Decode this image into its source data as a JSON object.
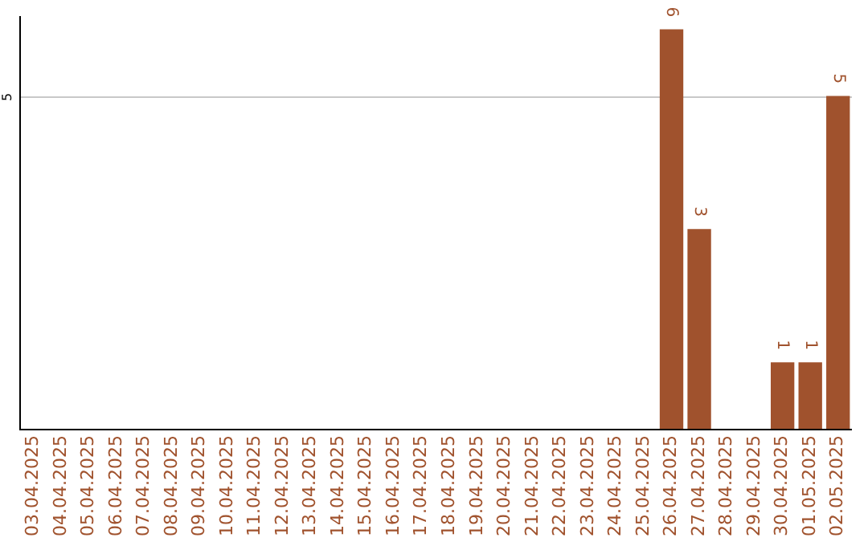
{
  "chart_data": {
    "type": "bar",
    "categories": [
      "03.04.2025",
      "04.04.2025",
      "05.04.2025",
      "06.04.2025",
      "07.04.2025",
      "08.04.2025",
      "09.04.2025",
      "10.04.2025",
      "11.04.2025",
      "12.04.2025",
      "13.04.2025",
      "14.04.2025",
      "15.04.2025",
      "16.04.2025",
      "17.04.2025",
      "18.04.2025",
      "19.04.2025",
      "20.04.2025",
      "21.04.2025",
      "22.04.2025",
      "23.04.2025",
      "24.04.2025",
      "25.04.2025",
      "26.04.2025",
      "27.04.2025",
      "28.04.2025",
      "29.04.2025",
      "30.04.2025",
      "01.05.2025",
      "02.05.2025"
    ],
    "values": [
      null,
      null,
      null,
      null,
      null,
      null,
      null,
      null,
      null,
      null,
      null,
      null,
      null,
      null,
      null,
      null,
      null,
      null,
      null,
      null,
      null,
      null,
      null,
      6,
      3,
      null,
      null,
      1,
      1,
      5
    ],
    "data_labels": true,
    "ylim": [
      0,
      6.2
    ],
    "ref_lines": [
      {
        "axis": "y",
        "value": 5,
        "label": "5",
        "color": "#c8c8c8"
      }
    ],
    "color": "#a0522d",
    "legend": false
  }
}
